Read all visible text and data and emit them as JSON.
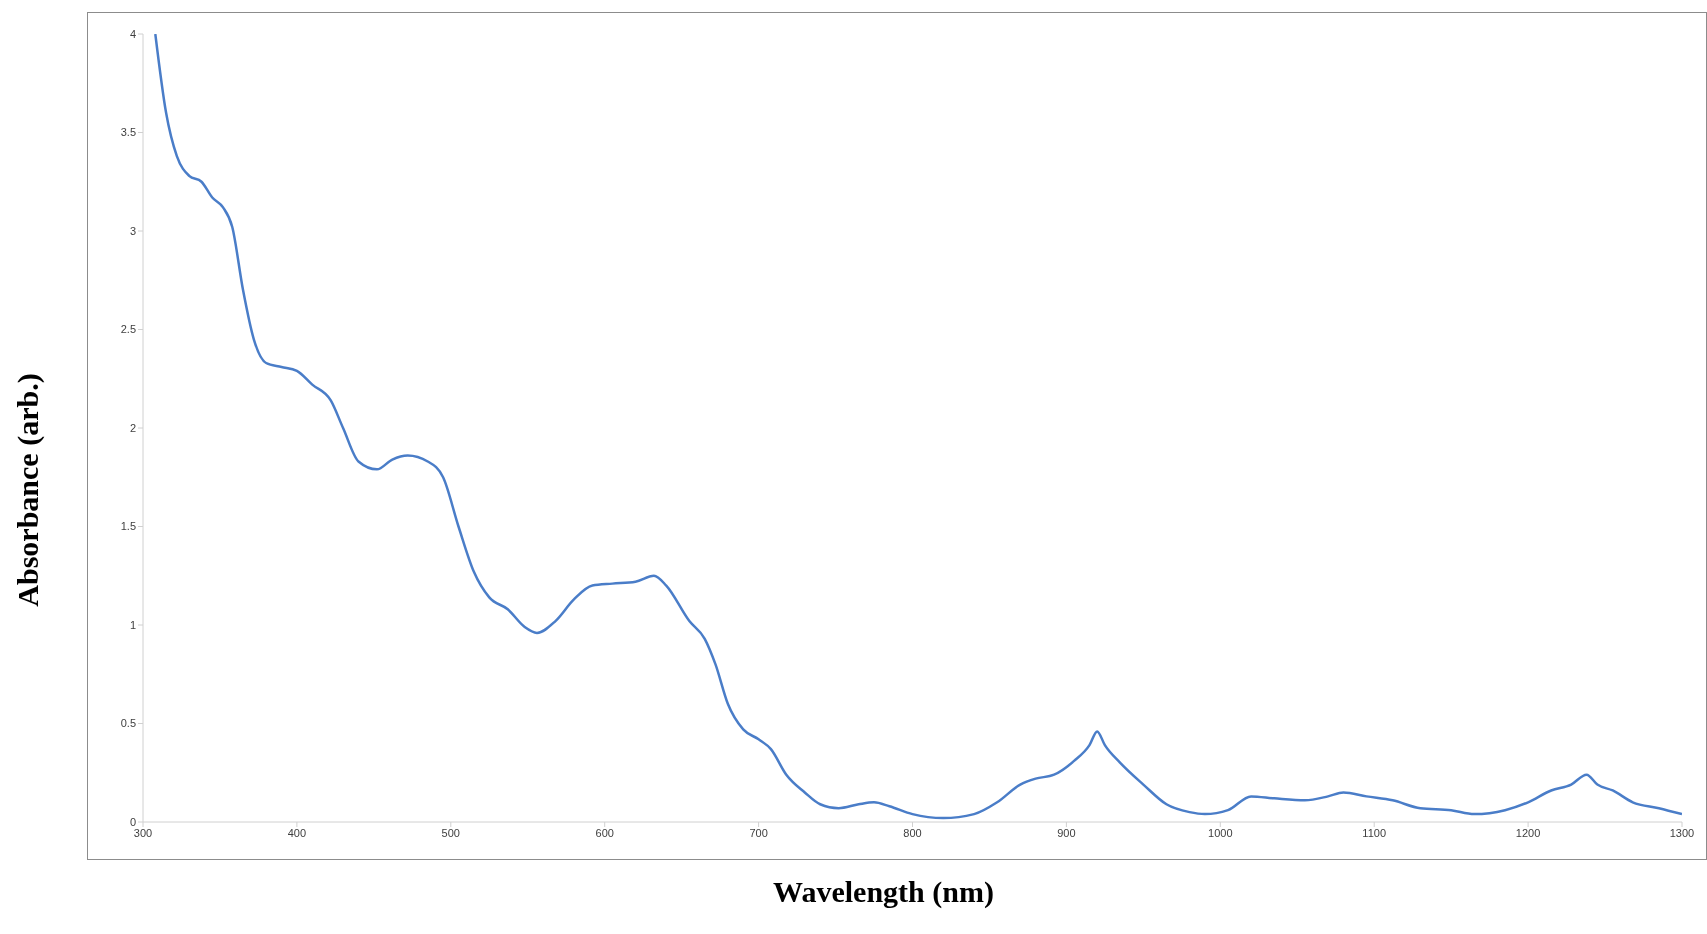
{
  "chart_data": {
    "type": "line",
    "xlabel": "Wavelength  (nm)",
    "ylabel": "Absorbance  (arb.)",
    "xlim": [
      300,
      1300
    ],
    "xticks": [
      300,
      400,
      500,
      600,
      700,
      800,
      900,
      1000,
      1100,
      1200,
      1300
    ],
    "ylim": [
      0,
      4
    ],
    "yticks": [
      0,
      0.5,
      1,
      1.5,
      2,
      2.5,
      3,
      3.5,
      4
    ],
    "grid": false,
    "legend": false,
    "marker": "none",
    "line_style": "solid",
    "series": [
      {
        "color": "#4a7dc8",
        "x": [
          308,
          315,
          322,
          330,
          338,
          345,
          352,
          358,
          365,
          372,
          380,
          390,
          400,
          410,
          422,
          430,
          440,
          452,
          462,
          472,
          485,
          495,
          505,
          515,
          525,
          537,
          548,
          556,
          568,
          580,
          592,
          605,
          620,
          632,
          640,
          655,
          665,
          672,
          680,
          690,
          700,
          708,
          718,
          730,
          740,
          752,
          765,
          775,
          785,
          800,
          820,
          840,
          855,
          870,
          880,
          892,
          905,
          915,
          920,
          925,
          935,
          950,
          965,
          980,
          990,
          1005,
          1020,
          1035,
          1055,
          1070,
          1080,
          1095,
          1112,
          1130,
          1150,
          1165,
          1185,
          1200,
          1215,
          1228,
          1238,
          1245,
          1255,
          1268,
          1285,
          1300
        ],
        "values": [
          4.0,
          3.6,
          3.38,
          3.28,
          3.25,
          3.17,
          3.12,
          3.02,
          2.7,
          2.45,
          2.33,
          2.31,
          2.29,
          2.22,
          2.14,
          2.0,
          1.83,
          1.79,
          1.84,
          1.86,
          1.83,
          1.75,
          1.5,
          1.27,
          1.14,
          1.08,
          0.99,
          0.96,
          1.02,
          1.13,
          1.2,
          1.21,
          1.22,
          1.25,
          1.2,
          1.02,
          0.93,
          0.8,
          0.6,
          0.47,
          0.42,
          0.37,
          0.24,
          0.15,
          0.09,
          0.07,
          0.09,
          0.1,
          0.08,
          0.04,
          0.02,
          0.04,
          0.1,
          0.19,
          0.22,
          0.24,
          0.31,
          0.39,
          0.46,
          0.39,
          0.3,
          0.19,
          0.09,
          0.05,
          0.04,
          0.06,
          0.13,
          0.12,
          0.11,
          0.13,
          0.15,
          0.13,
          0.11,
          0.07,
          0.06,
          0.04,
          0.06,
          0.1,
          0.16,
          0.19,
          0.24,
          0.19,
          0.16,
          0.1,
          0.07,
          0.04
        ]
      }
    ]
  }
}
